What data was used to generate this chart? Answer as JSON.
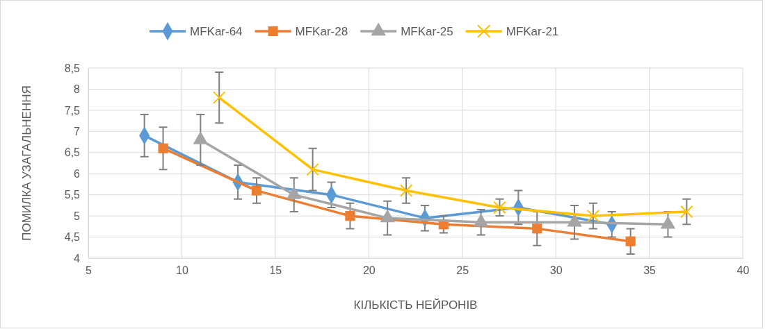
{
  "chart_data": {
    "type": "line",
    "xlabel": "КІЛЬКІСТЬ НЕЙРОНІВ",
    "ylabel": "ПОМИЛКА УЗАГАЛЬНЕННЯ",
    "xlim": [
      5,
      40
    ],
    "xticks": [
      5,
      10,
      15,
      20,
      25,
      30,
      35,
      40
    ],
    "ylim": [
      4,
      8.5
    ],
    "yticks": [
      4,
      {
        "value": 4.5,
        "label": "4,5"
      },
      5,
      {
        "value": 5.5,
        "label": "5,5"
      },
      6,
      {
        "value": 6.5,
        "label": "6,5"
      },
      7,
      {
        "value": 7.5,
        "label": "7,5"
      },
      8,
      {
        "value": 8.5,
        "label": "8,5"
      }
    ],
    "grid": true,
    "legend": "top",
    "series": [
      {
        "name": "MFKar-64",
        "color": "#5b9bd5",
        "marker": "diamond",
        "x": [
          8,
          13,
          18,
          23,
          28,
          33
        ],
        "values": [
          6.9,
          5.8,
          5.5,
          4.95,
          5.2,
          4.8
        ],
        "errors": [
          0.5,
          0.4,
          0.3,
          0.3,
          0.4,
          0.3
        ]
      },
      {
        "name": "MFKar-28",
        "color": "#ed7d31",
        "marker": "square",
        "x": [
          9,
          14,
          19,
          24,
          29,
          34
        ],
        "values": [
          6.6,
          5.6,
          5.0,
          4.8,
          4.7,
          4.4
        ],
        "errors": [
          0.5,
          0.3,
          0.3,
          0.2,
          0.4,
          0.3
        ]
      },
      {
        "name": "MFKar-25",
        "color": "#a5a5a5",
        "marker": "triangle",
        "x": [
          11,
          16,
          21,
          26,
          31,
          36
        ],
        "values": [
          6.8,
          5.5,
          4.95,
          4.85,
          4.85,
          4.8
        ],
        "errors": [
          0.6,
          0.4,
          0.4,
          0.3,
          0.4,
          0.3
        ]
      },
      {
        "name": "MFKar-21",
        "color": "#ffc000",
        "marker": "cross",
        "x": [
          12,
          17,
          22,
          27,
          32,
          37
        ],
        "values": [
          7.8,
          6.1,
          5.6,
          5.2,
          5.0,
          5.1
        ],
        "errors": [
          0.6,
          0.5,
          0.3,
          0.2,
          0.3,
          0.3
        ]
      }
    ]
  }
}
